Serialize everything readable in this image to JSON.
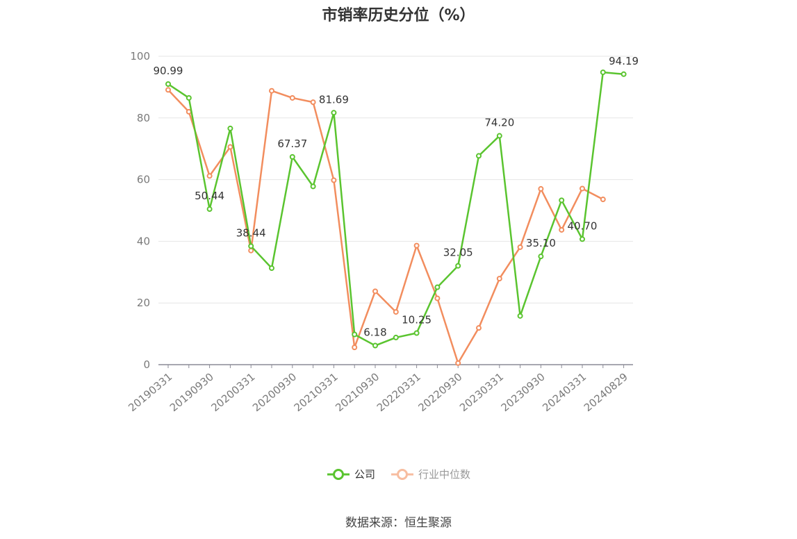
{
  "title": "市销率历史分位（%）",
  "source": "数据来源：恒生聚源",
  "colors": {
    "company": "#5ac42f",
    "industry": "#f28d5e",
    "grid": "#e6e6e6",
    "axis": "#8a8a96"
  },
  "chart_data": {
    "type": "line",
    "title": "市销率历史分位（%）",
    "ylim": [
      0,
      100
    ],
    "yticks": [
      0,
      20,
      40,
      60,
      80,
      100
    ],
    "grid": true,
    "legend_position": "bottom",
    "x_tick_labels": [
      "20190331",
      "20190930",
      "20200331",
      "20200930",
      "20210331",
      "20210930",
      "20220331",
      "20220930",
      "20230331",
      "20230930",
      "20240331",
      "20240829"
    ],
    "x": [
      "20190331",
      "20190630",
      "20190930",
      "20191231",
      "20200331",
      "20200630",
      "20200930",
      "20201231",
      "20210331",
      "20210630",
      "20210930",
      "20211231",
      "20220331",
      "20220630",
      "20220930",
      "20221231",
      "20230331",
      "20230630",
      "20230930",
      "20231231",
      "20240331",
      "20240630",
      "20240829"
    ],
    "series": [
      {
        "name": "公司",
        "values": [
          90.99,
          86.5,
          50.44,
          76.6,
          38.44,
          31.3,
          67.37,
          57.8,
          81.69,
          9.8,
          6.18,
          8.8,
          10.25,
          25.1,
          32.05,
          67.7,
          74.2,
          15.8,
          35.1,
          53.3,
          40.7,
          94.8,
          94.19
        ]
      },
      {
        "name": "行业中位数",
        "values": [
          89.1,
          82.0,
          61.2,
          70.6,
          37.0,
          88.8,
          86.5,
          85.1,
          59.8,
          5.6,
          23.8,
          17.1,
          38.6,
          21.5,
          0.5,
          11.9,
          27.9,
          38.1,
          57.0,
          43.7,
          57.1,
          53.6,
          null
        ]
      }
    ],
    "data_labels": [
      {
        "index": 0,
        "text": "90.99"
      },
      {
        "index": 2,
        "text": "50.44"
      },
      {
        "index": 4,
        "text": "38.44"
      },
      {
        "index": 6,
        "text": "67.37"
      },
      {
        "index": 8,
        "text": "81.69"
      },
      {
        "index": 10,
        "text": "6.18"
      },
      {
        "index": 12,
        "text": "10.25"
      },
      {
        "index": 14,
        "text": "32.05"
      },
      {
        "index": 16,
        "text": "74.20"
      },
      {
        "index": 18,
        "text": "35.10"
      },
      {
        "index": 20,
        "text": "40.70"
      },
      {
        "index": 22,
        "text": "94.19"
      }
    ]
  }
}
